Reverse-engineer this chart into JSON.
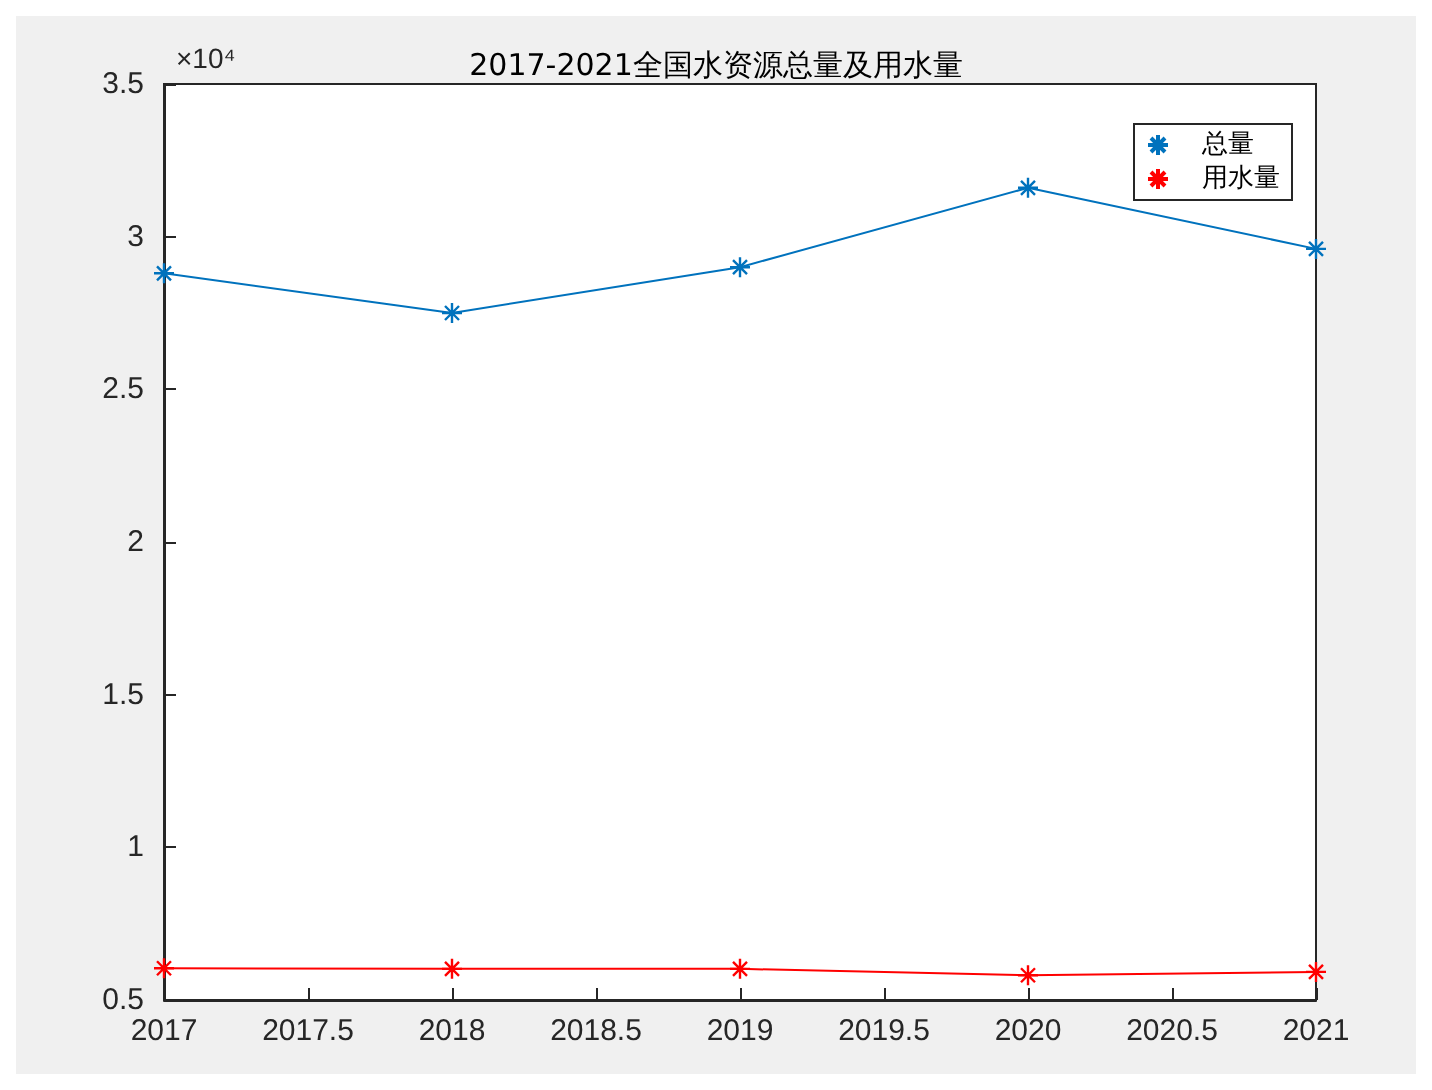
{
  "chart_data": {
    "type": "line",
    "title": "2017-2021全国水资源总量及用水量",
    "x": [
      2017,
      2018,
      2019,
      2020,
      2021
    ],
    "series": [
      {
        "name": "总量",
        "color": "#0072bd",
        "values": [
          2.88,
          2.75,
          2.9,
          3.16,
          2.96
        ]
      },
      {
        "name": "用水量",
        "color": "#ff0000",
        "values": [
          0.604,
          0.602,
          0.602,
          0.581,
          0.592
        ]
      }
    ],
    "xlim": [
      2017,
      2021
    ],
    "xticks": [
      2017,
      2017.5,
      2018,
      2018.5,
      2019,
      2019.5,
      2020,
      2020.5,
      2021
    ],
    "ylim": [
      0.5,
      3.5
    ],
    "yticks": [
      0.5,
      1,
      1.5,
      2,
      2.5,
      3,
      3.5
    ],
    "annotations": [
      "×10⁴"
    ],
    "legend": "top right",
    "marker": "cross",
    "line_style": "solid",
    "grid": false
  }
}
